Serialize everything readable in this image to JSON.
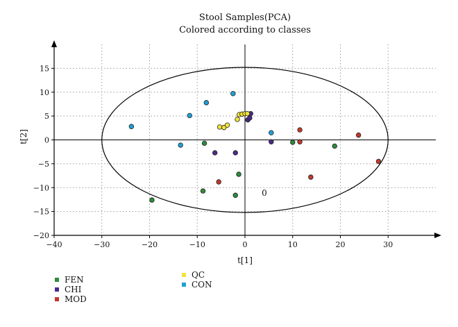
{
  "chart_data": {
    "type": "scatter",
    "title": "Stool Samples(PCA)",
    "subtitle": "Colored according to classes",
    "xlabel": "t[1]",
    "ylabel": "t[2]",
    "xlim": [
      -40,
      40
    ],
    "ylim": [
      -20,
      20
    ],
    "xticks": [
      -40,
      -30,
      -20,
      -10,
      0,
      10,
      20,
      30
    ],
    "yticks": [
      -20,
      -15,
      -10,
      -5,
      0,
      5,
      10,
      15
    ],
    "grid": true,
    "ellipse": {
      "center": [
        0,
        0
      ],
      "rx": 30,
      "ry": 15.2
    },
    "annotation": "0",
    "legend_placement": "bottom-left",
    "series": [
      {
        "name": "FEN",
        "color": "#2e8b3c",
        "points": [
          [
            -19.5,
            -12.6
          ],
          [
            -8.8,
            -10.7
          ],
          [
            -8.5,
            -0.7
          ],
          [
            -1.3,
            -7.2
          ],
          [
            -2.0,
            -11.6
          ],
          [
            10.0,
            -0.5
          ],
          [
            18.8,
            -1.3
          ]
        ]
      },
      {
        "name": "CHI",
        "color": "#4a2a8a",
        "points": [
          [
            -6.3,
            -2.7
          ],
          [
            -2.0,
            -2.7
          ],
          [
            0.6,
            4.2
          ],
          [
            1.0,
            4.6
          ],
          [
            1.2,
            5.5
          ],
          [
            5.5,
            -0.4
          ]
        ]
      },
      {
        "name": "MOD",
        "color": "#c0392b",
        "points": [
          [
            -5.5,
            -8.8
          ],
          [
            11.5,
            -0.4
          ],
          [
            11.5,
            2.1
          ],
          [
            13.8,
            -7.8
          ],
          [
            23.8,
            1.0
          ],
          [
            28.0,
            -4.5
          ]
        ]
      },
      {
        "name": "QC",
        "color": "#f2e33a",
        "points": [
          [
            -5.3,
            2.7
          ],
          [
            -4.4,
            2.6
          ],
          [
            -3.7,
            3.1
          ],
          [
            -1.6,
            4.3
          ],
          [
            -1.2,
            5.3
          ],
          [
            -0.6,
            5.4
          ],
          [
            0.0,
            5.5
          ],
          [
            0.5,
            5.5
          ]
        ]
      },
      {
        "name": "CON",
        "color": "#1ea0d6",
        "points": [
          [
            -23.8,
            2.8
          ],
          [
            -13.5,
            -1.1
          ],
          [
            -11.6,
            5.1
          ],
          [
            -8.1,
            7.8
          ],
          [
            -2.5,
            9.7
          ],
          [
            5.5,
            1.5
          ]
        ]
      }
    ]
  }
}
